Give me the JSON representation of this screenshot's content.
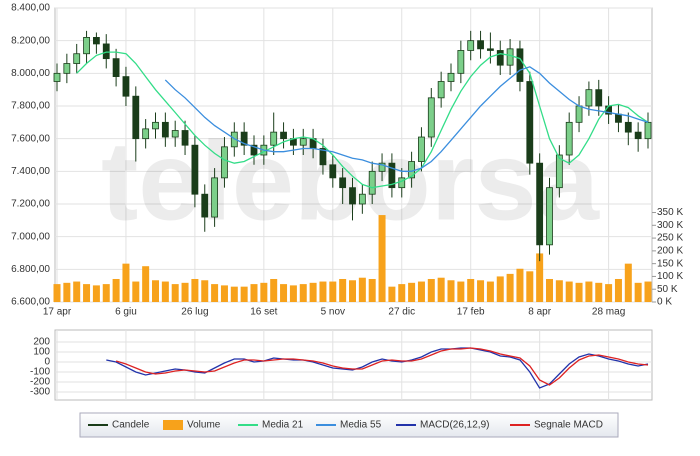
{
  "chart_data": [
    {
      "type": "candlestick",
      "watermark": "teleborsa",
      "categories": [
        "17 apr",
        null,
        null,
        null,
        null,
        null,
        null,
        "6 giu",
        null,
        null,
        null,
        null,
        null,
        null,
        "26 lug",
        null,
        null,
        null,
        null,
        null,
        null,
        "16 set",
        null,
        null,
        null,
        null,
        null,
        null,
        "5 nov",
        null,
        null,
        null,
        null,
        null,
        null,
        "27 dic",
        null,
        null,
        null,
        null,
        null,
        null,
        "17 feb",
        null,
        null,
        null,
        null,
        null,
        null,
        "8 apr",
        null,
        null,
        null,
        null,
        null,
        null,
        "28 mag",
        null,
        null,
        null,
        null
      ],
      "ylim": [
        6600,
        8400
      ],
      "yticks": [
        {
          "value": 6600,
          "label": "6.600,00"
        },
        {
          "value": 6800,
          "label": "6.800,00"
        },
        {
          "value": 7000,
          "label": "7.000,00"
        },
        {
          "value": 7200,
          "label": "7.200,00"
        },
        {
          "value": 7400,
          "label": "7.400,00"
        },
        {
          "value": 7600,
          "label": "7.600,00"
        },
        {
          "value": 7800,
          "label": "7.800,00"
        },
        {
          "value": 8000,
          "label": "8.000,00"
        },
        {
          "value": 8200,
          "label": "8.200,00"
        },
        {
          "value": 8400,
          "label": "8.400,00"
        }
      ],
      "y2lim": [
        0,
        1150
      ],
      "y2ticks": [
        {
          "value": 0,
          "label": "0 K"
        },
        {
          "value": 50,
          "label": "50 K"
        },
        {
          "value": 100,
          "label": "100 K"
        },
        {
          "value": 150,
          "label": "150 K"
        },
        {
          "value": 200,
          "label": "200 K"
        },
        {
          "value": 250,
          "label": "250 K"
        },
        {
          "value": 300,
          "label": "300 K"
        },
        {
          "value": 350,
          "label": "350 K"
        }
      ],
      "grid": true,
      "series": [
        {
          "name": "Candele",
          "color": "#1a3d1a",
          "open": [
            7950,
            8000,
            8060,
            8120,
            8220,
            8180,
            8090,
            7980,
            7860,
            7600,
            7660,
            7700,
            7610,
            7650,
            7560,
            7260,
            7120,
            7360,
            7550,
            7640,
            7560,
            7500,
            7560,
            7640,
            7600,
            7560,
            7600,
            7540,
            7440,
            7360,
            7300,
            7200,
            7260,
            7400,
            7450,
            7300,
            7360,
            7460,
            7610,
            7850,
            7950,
            8000,
            8140,
            8200,
            8150,
            8140,
            8050,
            8150,
            7950,
            7450,
            6950,
            7300,
            7500,
            7700,
            7800,
            7900,
            7800,
            7750,
            7700,
            7640,
            7600
          ],
          "high": [
            8060,
            8120,
            8180,
            8260,
            8250,
            8240,
            8150,
            8040,
            7920,
            7720,
            7760,
            7760,
            7710,
            7710,
            7620,
            7320,
            7420,
            7610,
            7700,
            7700,
            7620,
            7620,
            7760,
            7700,
            7660,
            7660,
            7660,
            7600,
            7500,
            7420,
            7360,
            7320,
            7460,
            7510,
            7510,
            7420,
            7520,
            7670,
            7910,
            8010,
            8060,
            8200,
            8260,
            8260,
            8250,
            8200,
            8210,
            8200,
            8010,
            7510,
            7360,
            7560,
            7760,
            7860,
            7950,
            7960,
            7860,
            7810,
            7760,
            7700,
            7760
          ],
          "low": [
            7890,
            7940,
            8000,
            8060,
            8120,
            8030,
            7920,
            7800,
            7460,
            7540,
            7600,
            7550,
            7550,
            7500,
            7180,
            7030,
            7060,
            7300,
            7490,
            7500,
            7440,
            7440,
            7500,
            7540,
            7500,
            7500,
            7480,
            7380,
            7300,
            7200,
            7100,
            7140,
            7200,
            7340,
            7240,
            7240,
            7300,
            7400,
            7550,
            7790,
            7890,
            7940,
            8080,
            8090,
            8060,
            7990,
            7990,
            7890,
            7380,
            6850,
            6890,
            7240,
            7440,
            7640,
            7740,
            7740,
            7690,
            7640,
            7560,
            7520,
            7540
          ],
          "close": [
            8000,
            8060,
            8120,
            8220,
            8180,
            8090,
            7980,
            7860,
            7600,
            7660,
            7700,
            7610,
            7650,
            7560,
            7260,
            7120,
            7360,
            7550,
            7640,
            7560,
            7500,
            7560,
            7640,
            7600,
            7560,
            7600,
            7540,
            7440,
            7360,
            7300,
            7200,
            7260,
            7400,
            7450,
            7300,
            7360,
            7460,
            7610,
            7850,
            7950,
            8000,
            8140,
            8200,
            8150,
            8140,
            8050,
            8150,
            7950,
            7450,
            6950,
            7300,
            7500,
            7700,
            7800,
            7900,
            7800,
            7750,
            7700,
            7640,
            7600,
            7700
          ]
        },
        {
          "name": "Volume",
          "color": "#f7a21b",
          "axis": "y2",
          "values": [
            70,
            75,
            80,
            70,
            65,
            70,
            90,
            150,
            80,
            140,
            85,
            80,
            70,
            75,
            90,
            85,
            70,
            65,
            60,
            60,
            70,
            75,
            90,
            70,
            65,
            70,
            75,
            80,
            80,
            90,
            85,
            95,
            90,
            340,
            60,
            70,
            75,
            80,
            90,
            95,
            85,
            80,
            90,
            85,
            80,
            100,
            110,
            130,
            120,
            190,
            90,
            85,
            80,
            75,
            80,
            75,
            70,
            90,
            150,
            75,
            80
          ]
        },
        {
          "name": "Media 21",
          "color": "#33dd88",
          "values": [
            null,
            null,
            8000,
            8060,
            8110,
            8130,
            8130,
            8120,
            8060,
            7980,
            7900,
            7830,
            7760,
            7690,
            7620,
            7560,
            7510,
            7470,
            7450,
            7460,
            7490,
            7520,
            7550,
            7580,
            7600,
            7610,
            7600,
            7560,
            7500,
            7430,
            7370,
            7320,
            7300,
            7310,
            7320,
            7340,
            7370,
            7420,
            7520,
            7650,
            7780,
            7890,
            7980,
            8050,
            8100,
            8120,
            8110,
            8090,
            8000,
            7800,
            7600,
            7480,
            7450,
            7500,
            7600,
            7720,
            7800,
            7810,
            7790,
            7740,
            7700
          ]
        },
        {
          "name": "Media 55",
          "color": "#3b8ede",
          "values": [
            null,
            null,
            null,
            null,
            null,
            null,
            null,
            null,
            null,
            null,
            null,
            7960,
            7900,
            7850,
            7790,
            7730,
            7680,
            7640,
            7600,
            7570,
            7550,
            7530,
            7520,
            7520,
            7530,
            7540,
            7540,
            7530,
            7520,
            7500,
            7480,
            7470,
            7450,
            7440,
            7420,
            7400,
            7400,
            7420,
            7460,
            7520,
            7590,
            7660,
            7730,
            7800,
            7860,
            7920,
            7970,
            8020,
            8040,
            8000,
            7940,
            7890,
            7840,
            7800,
            7780,
            7770,
            7760,
            7750,
            7740,
            7720,
            7700
          ]
        }
      ]
    },
    {
      "type": "line",
      "ylim": [
        -380,
        320
      ],
      "yticks": [
        200,
        100,
        0,
        -100,
        -200,
        -300
      ],
      "grid": true,
      "series": [
        {
          "name": "MACD(26,12,9)",
          "color": "#2233aa",
          "values": [
            null,
            null,
            null,
            null,
            null,
            20,
            0,
            -50,
            -100,
            -130,
            -110,
            -90,
            -70,
            -80,
            -100,
            -110,
            -60,
            -10,
            30,
            30,
            0,
            10,
            40,
            30,
            20,
            20,
            0,
            -30,
            -60,
            -70,
            -80,
            -50,
            0,
            30,
            10,
            0,
            20,
            50,
            100,
            130,
            130,
            140,
            140,
            120,
            100,
            60,
            50,
            20,
            -100,
            -260,
            -220,
            -120,
            -20,
            50,
            80,
            60,
            30,
            10,
            -20,
            -40,
            -20
          ]
        },
        {
          "name": "Segnale MACD",
          "color": "#dd2222",
          "values": [
            null,
            null,
            null,
            null,
            null,
            null,
            10,
            -20,
            -60,
            -100,
            -120,
            -110,
            -90,
            -80,
            -90,
            -100,
            -90,
            -50,
            -10,
            20,
            20,
            10,
            20,
            30,
            30,
            20,
            10,
            -10,
            -40,
            -60,
            -70,
            -70,
            -30,
            10,
            20,
            10,
            10,
            30,
            70,
            110,
            130,
            130,
            140,
            130,
            110,
            80,
            60,
            40,
            -40,
            -180,
            -230,
            -160,
            -60,
            20,
            60,
            70,
            50,
            30,
            0,
            -20,
            -30
          ]
        }
      ]
    }
  ]
}
